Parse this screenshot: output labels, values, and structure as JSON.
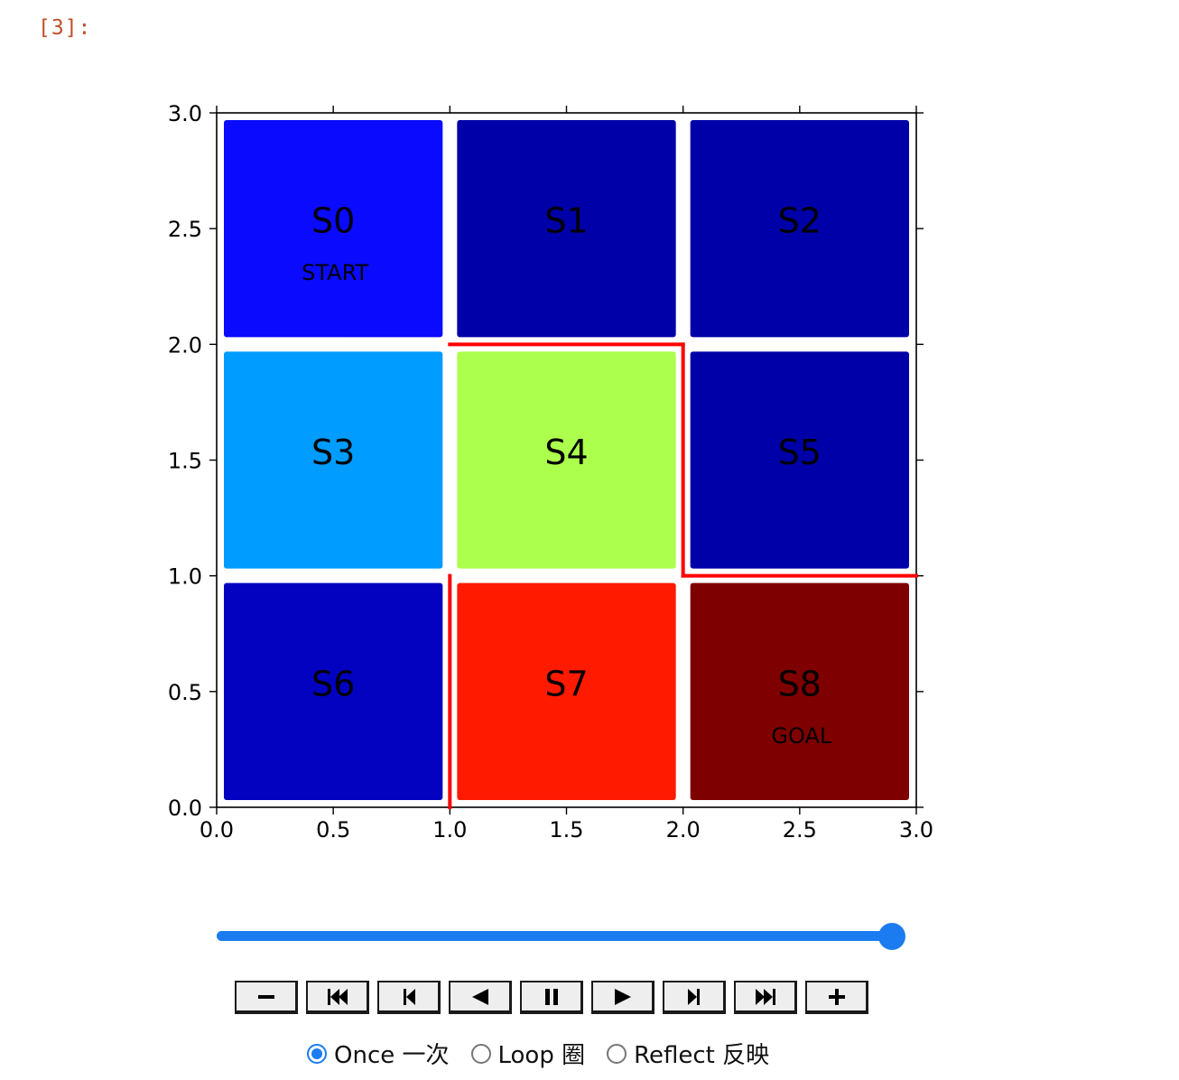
{
  "cell": {
    "prompt": "[3]:"
  },
  "chart_data": {
    "type": "heatmap",
    "title": "",
    "xlabel": "",
    "ylabel": "",
    "xlim": [
      0,
      3
    ],
    "ylim": [
      0,
      3
    ],
    "x_ticks": [
      "0.0",
      "0.5",
      "1.0",
      "1.5",
      "2.0",
      "2.5",
      "3.0"
    ],
    "y_ticks": [
      "0.0",
      "0.5",
      "1.0",
      "1.5",
      "2.0",
      "2.5",
      "3.0"
    ],
    "cells": [
      {
        "state": "S0",
        "row": 0,
        "col": 0,
        "color": "#0a0afe",
        "sub": "START"
      },
      {
        "state": "S1",
        "row": 0,
        "col": 1,
        "color": "#0000a8",
        "sub": ""
      },
      {
        "state": "S2",
        "row": 0,
        "col": 2,
        "color": "#0000a8",
        "sub": ""
      },
      {
        "state": "S3",
        "row": 1,
        "col": 0,
        "color": "#009cff",
        "sub": ""
      },
      {
        "state": "S4",
        "row": 1,
        "col": 1,
        "color": "#acff4d",
        "sub": ""
      },
      {
        "state": "S5",
        "row": 1,
        "col": 2,
        "color": "#0000a8",
        "sub": ""
      },
      {
        "state": "S6",
        "row": 2,
        "col": 0,
        "color": "#0202c0",
        "sub": ""
      },
      {
        "state": "S7",
        "row": 2,
        "col": 1,
        "color": "#ff1a00",
        "sub": ""
      },
      {
        "state": "S8",
        "row": 2,
        "col": 2,
        "color": "#7f0000",
        "sub": "GOAL"
      }
    ],
    "walls": [
      {
        "x": [
          1,
          2
        ],
        "y": [
          2,
          2
        ]
      },
      {
        "x": [
          2,
          2
        ],
        "y": [
          2,
          1
        ]
      },
      {
        "x": [
          2,
          3
        ],
        "y": [
          1,
          1
        ]
      },
      {
        "x": [
          1,
          1
        ],
        "y": [
          1,
          0
        ]
      }
    ],
    "wall_color": "#ff0000"
  },
  "player": {
    "slider_fraction": 1.0,
    "buttons": [
      {
        "name": "decrease-speed-button",
        "icon": "minus-icon"
      },
      {
        "name": "first-frame-button",
        "icon": "skip-start-icon"
      },
      {
        "name": "previous-frame-button",
        "icon": "step-back-icon"
      },
      {
        "name": "play-reverse-button",
        "icon": "play-reverse-icon"
      },
      {
        "name": "pause-button",
        "icon": "pause-icon"
      },
      {
        "name": "play-button",
        "icon": "play-icon"
      },
      {
        "name": "next-frame-button",
        "icon": "step-forward-icon"
      },
      {
        "name": "last-frame-button",
        "icon": "skip-end-icon"
      },
      {
        "name": "increase-speed-button",
        "icon": "plus-icon"
      }
    ],
    "modes": [
      {
        "label": "Once 一次",
        "checked": true
      },
      {
        "label": "Loop 圈",
        "checked": false
      },
      {
        "label": "Reflect 反映",
        "checked": false
      }
    ],
    "accent_color": "#1a7cf0"
  }
}
